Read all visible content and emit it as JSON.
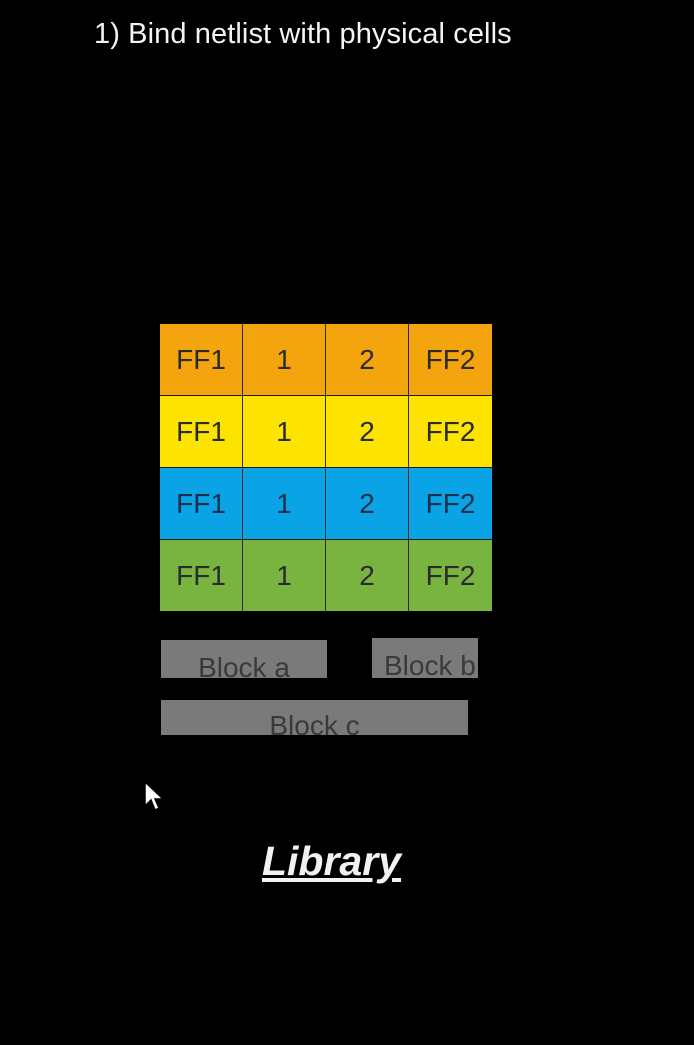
{
  "heading": "1) Bind netlist with physical cells",
  "cell_rows": [
    {
      "color": "#f4a40c",
      "cells": [
        "FF1",
        "1",
        "2",
        "FF2"
      ]
    },
    {
      "color": "#fce400",
      "cells": [
        "FF1",
        "1",
        "2",
        "FF2"
      ]
    },
    {
      "color": "#0aa3e6",
      "cells": [
        "FF1",
        "1",
        "2",
        "FF2"
      ]
    },
    {
      "color": "#78b43f",
      "cells": [
        "FF1",
        "1",
        "2",
        "FF2"
      ]
    }
  ],
  "blocks": {
    "a": "Block a",
    "b": "Block b",
    "c": "Block c"
  },
  "library_label": "Library",
  "colors": {
    "background": "#000000",
    "block_gray": "#7a7a7a"
  },
  "cursor_icon": "mouse-pointer-icon"
}
